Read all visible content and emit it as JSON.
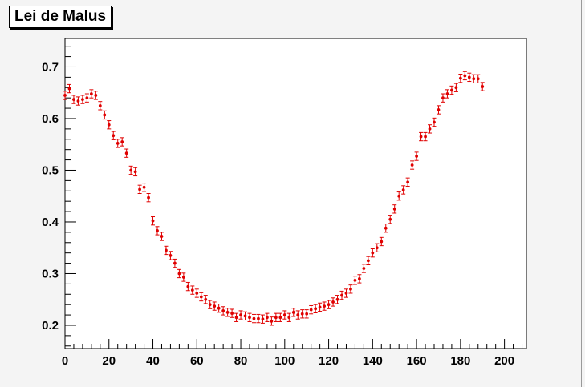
{
  "chart_data": {
    "type": "scatter",
    "title": "Lei de Malus",
    "xlabel": "",
    "ylabel": "",
    "xlim": [
      0,
      210
    ],
    "ylim": [
      0.155,
      0.755
    ],
    "x_ticks": [
      0,
      20,
      40,
      60,
      80,
      100,
      120,
      140,
      160,
      180,
      200
    ],
    "y_ticks": [
      0.2,
      0.3,
      0.4,
      0.5,
      0.6,
      0.7
    ],
    "x_tick_labels": [
      "0",
      "20",
      "40",
      "60",
      "80",
      "100",
      "120",
      "140",
      "160",
      "180",
      "200"
    ],
    "y_tick_labels": [
      "0.2",
      "0.3",
      "0.4",
      "0.5",
      "0.6",
      "0.7"
    ],
    "grid": false,
    "legend": "none",
    "marker_color": "#e00000",
    "series": [
      {
        "error": 0.008,
        "x": [
          0,
          2,
          4,
          6,
          8,
          10,
          12,
          14,
          16,
          18,
          20,
          22,
          24,
          26,
          28,
          30,
          32,
          34,
          36,
          38,
          40,
          42,
          44,
          46,
          48,
          50,
          52,
          54,
          56,
          58,
          60,
          62,
          64,
          66,
          68,
          70,
          72,
          74,
          76,
          78,
          80,
          82,
          84,
          86,
          88,
          90,
          92,
          94,
          96,
          98,
          100,
          102,
          104,
          106,
          108,
          110,
          112,
          114,
          116,
          118,
          120,
          122,
          124,
          126,
          128,
          130,
          132,
          134,
          136,
          138,
          140,
          142,
          144,
          146,
          148,
          150,
          152,
          154,
          156,
          158,
          160,
          162,
          164,
          166,
          168,
          170,
          172,
          174,
          176,
          178,
          180,
          182,
          184,
          186,
          188,
          190
        ],
        "y": [
          0.645,
          0.658,
          0.637,
          0.634,
          0.637,
          0.64,
          0.648,
          0.645,
          0.625,
          0.607,
          0.588,
          0.567,
          0.552,
          0.555,
          0.533,
          0.5,
          0.497,
          0.463,
          0.467,
          0.447,
          0.402,
          0.383,
          0.372,
          0.345,
          0.335,
          0.32,
          0.3,
          0.293,
          0.275,
          0.268,
          0.262,
          0.255,
          0.25,
          0.24,
          0.237,
          0.233,
          0.228,
          0.225,
          0.223,
          0.215,
          0.22,
          0.218,
          0.215,
          0.213,
          0.213,
          0.212,
          0.215,
          0.208,
          0.215,
          0.215,
          0.22,
          0.215,
          0.225,
          0.22,
          0.222,
          0.222,
          0.23,
          0.232,
          0.235,
          0.237,
          0.24,
          0.245,
          0.25,
          0.258,
          0.262,
          0.27,
          0.287,
          0.29,
          0.31,
          0.325,
          0.34,
          0.35,
          0.362,
          0.388,
          0.405,
          0.425,
          0.45,
          0.462,
          0.477,
          0.51,
          0.527,
          0.565,
          0.565,
          0.58,
          0.593,
          0.617,
          0.64,
          0.648,
          0.655,
          0.66,
          0.678,
          0.683,
          0.68,
          0.677,
          0.677,
          0.662
        ]
      }
    ]
  }
}
